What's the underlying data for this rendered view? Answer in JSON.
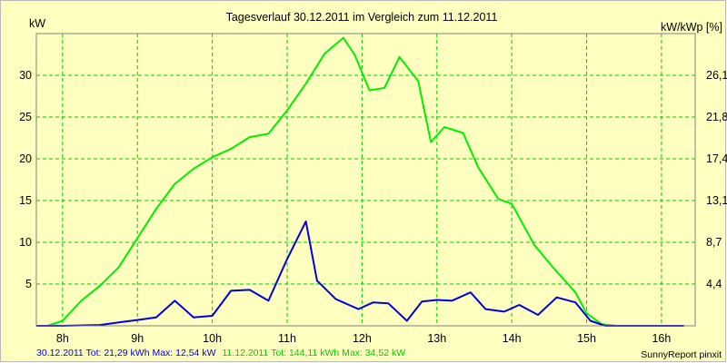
{
  "chart_data": {
    "type": "line",
    "title": "Tagesverlauf 30.12.2011 im Vergleich zum 11.12.2011",
    "ylabel": "kW",
    "ylabel_right": "kW/kWp [%]",
    "ylim": [
      0,
      35
    ],
    "xlim": [
      7.65,
      16.45
    ],
    "x_ticks": [
      8,
      9,
      10,
      11,
      12,
      13,
      14,
      15,
      16
    ],
    "x_tick_labels": [
      "8h",
      "9h",
      "10h",
      "11h",
      "12h",
      "13h",
      "14h",
      "15h",
      "16h"
    ],
    "y_ticks": [
      5,
      10,
      15,
      20,
      25,
      30
    ],
    "y_tick_labels": [
      "5",
      "10",
      "15",
      "20",
      "25",
      "30"
    ],
    "y2_ticks": [
      4.4,
      8.7,
      13.1,
      17.4,
      21.8,
      26.1
    ],
    "y2_tick_labels": [
      "4,4",
      "8,7",
      "13,1",
      "17,4",
      "21,8",
      "26,1"
    ],
    "grid": true,
    "series": [
      {
        "name": "11.12.2011",
        "color": "#00ee00",
        "x": [
          7.65,
          7.8,
          8.0,
          8.25,
          8.5,
          8.75,
          9.0,
          9.25,
          9.5,
          9.75,
          10.0,
          10.25,
          10.5,
          10.75,
          11.0,
          11.25,
          11.5,
          11.75,
          11.9,
          12.1,
          12.3,
          12.5,
          12.75,
          12.92,
          13.1,
          13.35,
          13.55,
          13.82,
          14.0,
          14.3,
          14.55,
          14.85,
          15.0,
          15.2,
          15.4,
          15.6,
          15.8,
          16.0,
          16.2
        ],
        "values": [
          0.0,
          0.0,
          0.6,
          3.0,
          4.8,
          7.0,
          10.5,
          14.0,
          17.0,
          18.8,
          20.2,
          21.2,
          22.6,
          23.0,
          25.8,
          29.0,
          32.6,
          34.5,
          32.5,
          28.2,
          28.5,
          32.2,
          29.3,
          22.0,
          23.8,
          23.1,
          19.0,
          15.2,
          14.6,
          9.7,
          7.0,
          4.0,
          1.5,
          0.2,
          0.0,
          0.0,
          0.0,
          0.0,
          0.0
        ],
        "values_note": null
      },
      {
        "name": "30.12.2011",
        "color": "#0000dd",
        "x": [
          7.65,
          8.0,
          8.5,
          8.75,
          9.0,
          9.25,
          9.5,
          9.75,
          10.0,
          10.25,
          10.5,
          10.75,
          11.0,
          11.25,
          11.4,
          11.65,
          11.95,
          12.15,
          12.35,
          12.6,
          12.8,
          13.0,
          13.2,
          13.45,
          13.65,
          13.9,
          14.1,
          14.35,
          14.6,
          14.85,
          15.05,
          15.25,
          15.45,
          15.7,
          15.9,
          16.1,
          16.3
        ],
        "values": [
          0.0,
          0.0,
          0.1,
          0.4,
          0.7,
          1.0,
          3.0,
          1.0,
          1.2,
          4.2,
          4.3,
          3.0,
          8.0,
          12.5,
          5.4,
          3.2,
          2.0,
          2.8,
          2.7,
          0.6,
          2.9,
          3.1,
          3.0,
          4.0,
          2.0,
          1.7,
          2.5,
          1.3,
          3.4,
          2.8,
          0.6,
          0.0,
          0.0,
          0.0,
          0.0,
          0.0,
          0.0
        ]
      }
    ]
  },
  "footer": {
    "s1_prefix": "30.12.2011 Tot: 21,29 kWh Max: 12,54 kW",
    "s2_prefix": "11.12.2011 Tot: 144,11 kWh Max: 34,52 kW",
    "brand": "SunnyReport pinxit",
    "s1_color": "#0000dd",
    "s2_color": "#00cc00"
  }
}
